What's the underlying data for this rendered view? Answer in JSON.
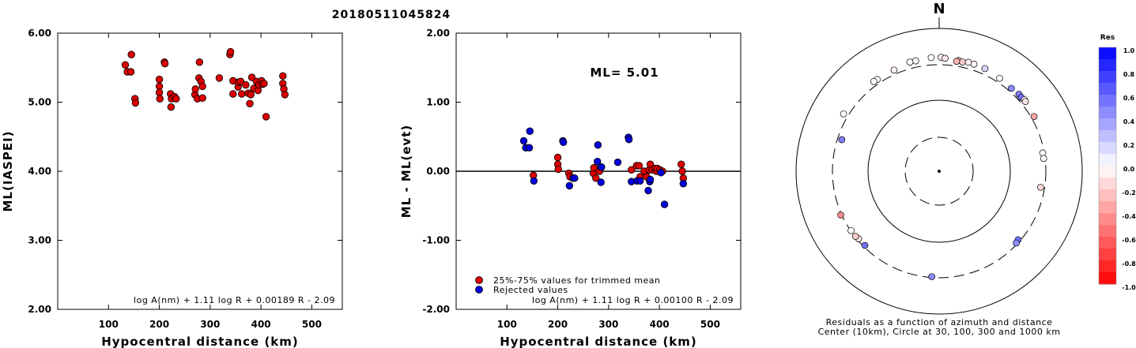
{
  "title": "20180511045824",
  "chart_data": [
    {
      "type": "scatter",
      "ylabel": "ML(IASPEI)",
      "xlabel": "Hypocentral distance (km)",
      "xlim": [
        0,
        560
      ],
      "ylim": [
        2.0,
        6.0
      ],
      "xticks": [
        "100",
        "200",
        "300",
        "400",
        "500"
      ],
      "yticks": [
        "2.00",
        "3.00",
        "4.00",
        "5.00",
        "6.00"
      ],
      "formula": "log A(nm) + 1.11 log R + 0.00189 R - 2.09",
      "series": [
        {
          "color": "#dd0000",
          "points": [
            [
              133,
              5.54
            ],
            [
              137,
              5.44
            ],
            [
              144,
              5.44
            ],
            [
              145,
              5.69
            ],
            [
              152,
              5.05
            ],
            [
              153,
              4.99
            ],
            [
              200,
              5.33
            ],
            [
              200,
              5.23
            ],
            [
              200,
              5.14
            ],
            [
              201,
              5.05
            ],
            [
              210,
              5.58
            ],
            [
              211,
              5.56
            ],
            [
              222,
              5.12
            ],
            [
              223,
              4.93
            ],
            [
              224,
              5.05
            ],
            [
              230,
              5.08
            ],
            [
              233,
              5.05
            ],
            [
              270,
              5.11
            ],
            [
              271,
              5.19
            ],
            [
              275,
              5.05
            ],
            [
              278,
              5.35
            ],
            [
              279,
              5.58
            ],
            [
              282,
              5.3
            ],
            [
              285,
              5.23
            ],
            [
              285,
              5.06
            ],
            [
              318,
              5.35
            ],
            [
              339,
              5.69
            ],
            [
              340,
              5.73
            ],
            [
              345,
              5.31
            ],
            [
              345,
              5.12
            ],
            [
              355,
              5.22
            ],
            [
              356,
              5.29
            ],
            [
              360,
              5.3
            ],
            [
              362,
              5.12
            ],
            [
              370,
              5.25
            ],
            [
              375,
              5.13
            ],
            [
              378,
              4.98
            ],
            [
              380,
              5.11
            ],
            [
              382,
              5.36
            ],
            [
              386,
              5.2
            ],
            [
              391,
              5.3
            ],
            [
              394,
              5.17
            ],
            [
              396,
              5.25
            ],
            [
              401,
              5.31
            ],
            [
              403,
              5.26
            ],
            [
              406,
              5.27
            ],
            [
              410,
              4.79
            ],
            [
              443,
              5.38
            ],
            [
              443,
              5.27
            ],
            [
              445,
              5.19
            ],
            [
              447,
              5.11
            ]
          ]
        }
      ]
    },
    {
      "type": "scatter",
      "ylabel": "ML - ML(evt)",
      "xlabel": "Hypocentral distance (km)",
      "xlim": [
        0,
        560
      ],
      "ylim": [
        -2.0,
        2.0
      ],
      "xticks": [
        "100",
        "200",
        "300",
        "400",
        "500"
      ],
      "yticks": [
        "-2.00",
        "-1.00",
        "0.00",
        "1.00",
        "2.00"
      ],
      "annotation": "ML= 5.01",
      "formula": "log A(nm) + 1.11 log R + 0.00100 R - 2.09",
      "legend": [
        "25%-75% values for trimmed mean",
        "Rejected values"
      ],
      "series": [
        {
          "name": "25%-75% values for trimmed mean",
          "color": "#dd0000",
          "points": [
            [
              152,
              -0.06
            ],
            [
              200,
              0.2
            ],
            [
              200,
              0.1
            ],
            [
              201,
              0.03
            ],
            [
              222,
              -0.03
            ],
            [
              224,
              -0.08
            ],
            [
              270,
              -0.03
            ],
            [
              271,
              0.05
            ],
            [
              275,
              -0.1
            ],
            [
              282,
              0.0
            ],
            [
              285,
              0.06
            ],
            [
              345,
              0.02
            ],
            [
              355,
              0.08
            ],
            [
              360,
              0.08
            ],
            [
              362,
              -0.08
            ],
            [
              370,
              0.0
            ],
            [
              375,
              -0.08
            ],
            [
              380,
              0.02
            ],
            [
              382,
              0.1
            ],
            [
              386,
              0.02
            ],
            [
              391,
              0.04
            ],
            [
              394,
              0.0
            ],
            [
              396,
              0.04
            ],
            [
              401,
              0.02
            ],
            [
              406,
              0.0
            ],
            [
              443,
              0.1
            ],
            [
              445,
              0.0
            ],
            [
              447,
              -0.1
            ]
          ]
        },
        {
          "name": "Rejected values",
          "color": "#0000dd",
          "points": [
            [
              133,
              0.44
            ],
            [
              137,
              0.34
            ],
            [
              144,
              0.34
            ],
            [
              145,
              0.58
            ],
            [
              153,
              -0.14
            ],
            [
              210,
              0.44
            ],
            [
              211,
              0.42
            ],
            [
              223,
              -0.21
            ],
            [
              230,
              -0.1
            ],
            [
              233,
              -0.1
            ],
            [
              278,
              0.14
            ],
            [
              279,
              0.38
            ],
            [
              285,
              -0.16
            ],
            [
              286,
              0.06
            ],
            [
              318,
              0.13
            ],
            [
              339,
              0.49
            ],
            [
              340,
              0.46
            ],
            [
              345,
              -0.15
            ],
            [
              356,
              -0.14
            ],
            [
              362,
              -0.14
            ],
            [
              378,
              -0.28
            ],
            [
              381,
              -0.15
            ],
            [
              382,
              -0.12
            ],
            [
              403,
              -0.02
            ],
            [
              410,
              -0.48
            ],
            [
              447,
              -0.18
            ]
          ]
        }
      ]
    },
    {
      "type": "scatter",
      "north_label": "N",
      "colorbar_title": "Res",
      "colorbar_ticks": [
        "1.0",
        "0.8",
        "0.6",
        "0.4",
        "0.2",
        "0.0",
        "-0.2",
        "-0.4",
        "-0.6",
        "-0.8",
        "-1.0"
      ],
      "caption": [
        "Residuals as a function of azimuth and distance",
        "Center (10km), Circle at 30, 100, 300 and 1000 km"
      ],
      "range_circles_km": [
        30,
        100,
        300,
        1000
      ],
      "stations": [
        {
          "az": 356,
          "dist": 384,
          "res": 0.0
        },
        {
          "az": 1,
          "dist": 384,
          "res": -0.05
        },
        {
          "az": 3,
          "dist": 373,
          "res": -0.1
        },
        {
          "az": 10,
          "dist": 364,
          "res": -0.25
        },
        {
          "az": 12,
          "dist": 356,
          "res": -0.2
        },
        {
          "az": 9,
          "dist": 351,
          "res": -0.3
        },
        {
          "az": 15,
          "dist": 370,
          "res": -0.05
        },
        {
          "az": 18,
          "dist": 367,
          "res": -0.05
        },
        {
          "az": 24,
          "dist": 364,
          "res": 0.15
        },
        {
          "az": 33,
          "dist": 346,
          "res": 0.0
        },
        {
          "az": 41,
          "dist": 335,
          "res": 0.45
        },
        {
          "az": 46,
          "dist": 345,
          "res": 0.5
        },
        {
          "az": 48,
          "dist": 340,
          "res": 0.55
        },
        {
          "az": 50,
          "dist": 350,
          "res": -0.05
        },
        {
          "az": 51,
          "dist": 345,
          "res": -0.1
        },
        {
          "az": 60,
          "dist": 330,
          "res": -0.35
        },
        {
          "az": 348,
          "dist": 370,
          "res": 0.0
        },
        {
          "az": 345,
          "dist": 371,
          "res": 0.0
        },
        {
          "az": 336,
          "dist": 345,
          "res": -0.05
        },
        {
          "az": 326,
          "dist": 344,
          "res": 0.0
        },
        {
          "az": 324,
          "dist": 347,
          "res": 0.0
        },
        {
          "az": 301,
          "dist": 352,
          "res": 0.0
        },
        {
          "az": 288,
          "dist": 262,
          "res": 0.5
        },
        {
          "az": 80,
          "dist": 286,
          "res": 0.0
        },
        {
          "az": 83,
          "dist": 287,
          "res": 0.0
        },
        {
          "az": 99,
          "dist": 265,
          "res": -0.15
        },
        {
          "az": 131,
          "dist": 281,
          "res": 0.55
        },
        {
          "az": 133,
          "dist": 288,
          "res": 0.45
        },
        {
          "az": 184,
          "dist": 292,
          "res": 0.45
        },
        {
          "az": 225,
          "dist": 285,
          "res": 0.55
        },
        {
          "az": 230,
          "dist": 286,
          "res": -0.1
        },
        {
          "az": 232,
          "dist": 294,
          "res": -0.2
        },
        {
          "az": 236,
          "dist": 296,
          "res": 0.0
        },
        {
          "az": 246,
          "dist": 310,
          "res": -0.45
        }
      ]
    }
  ]
}
